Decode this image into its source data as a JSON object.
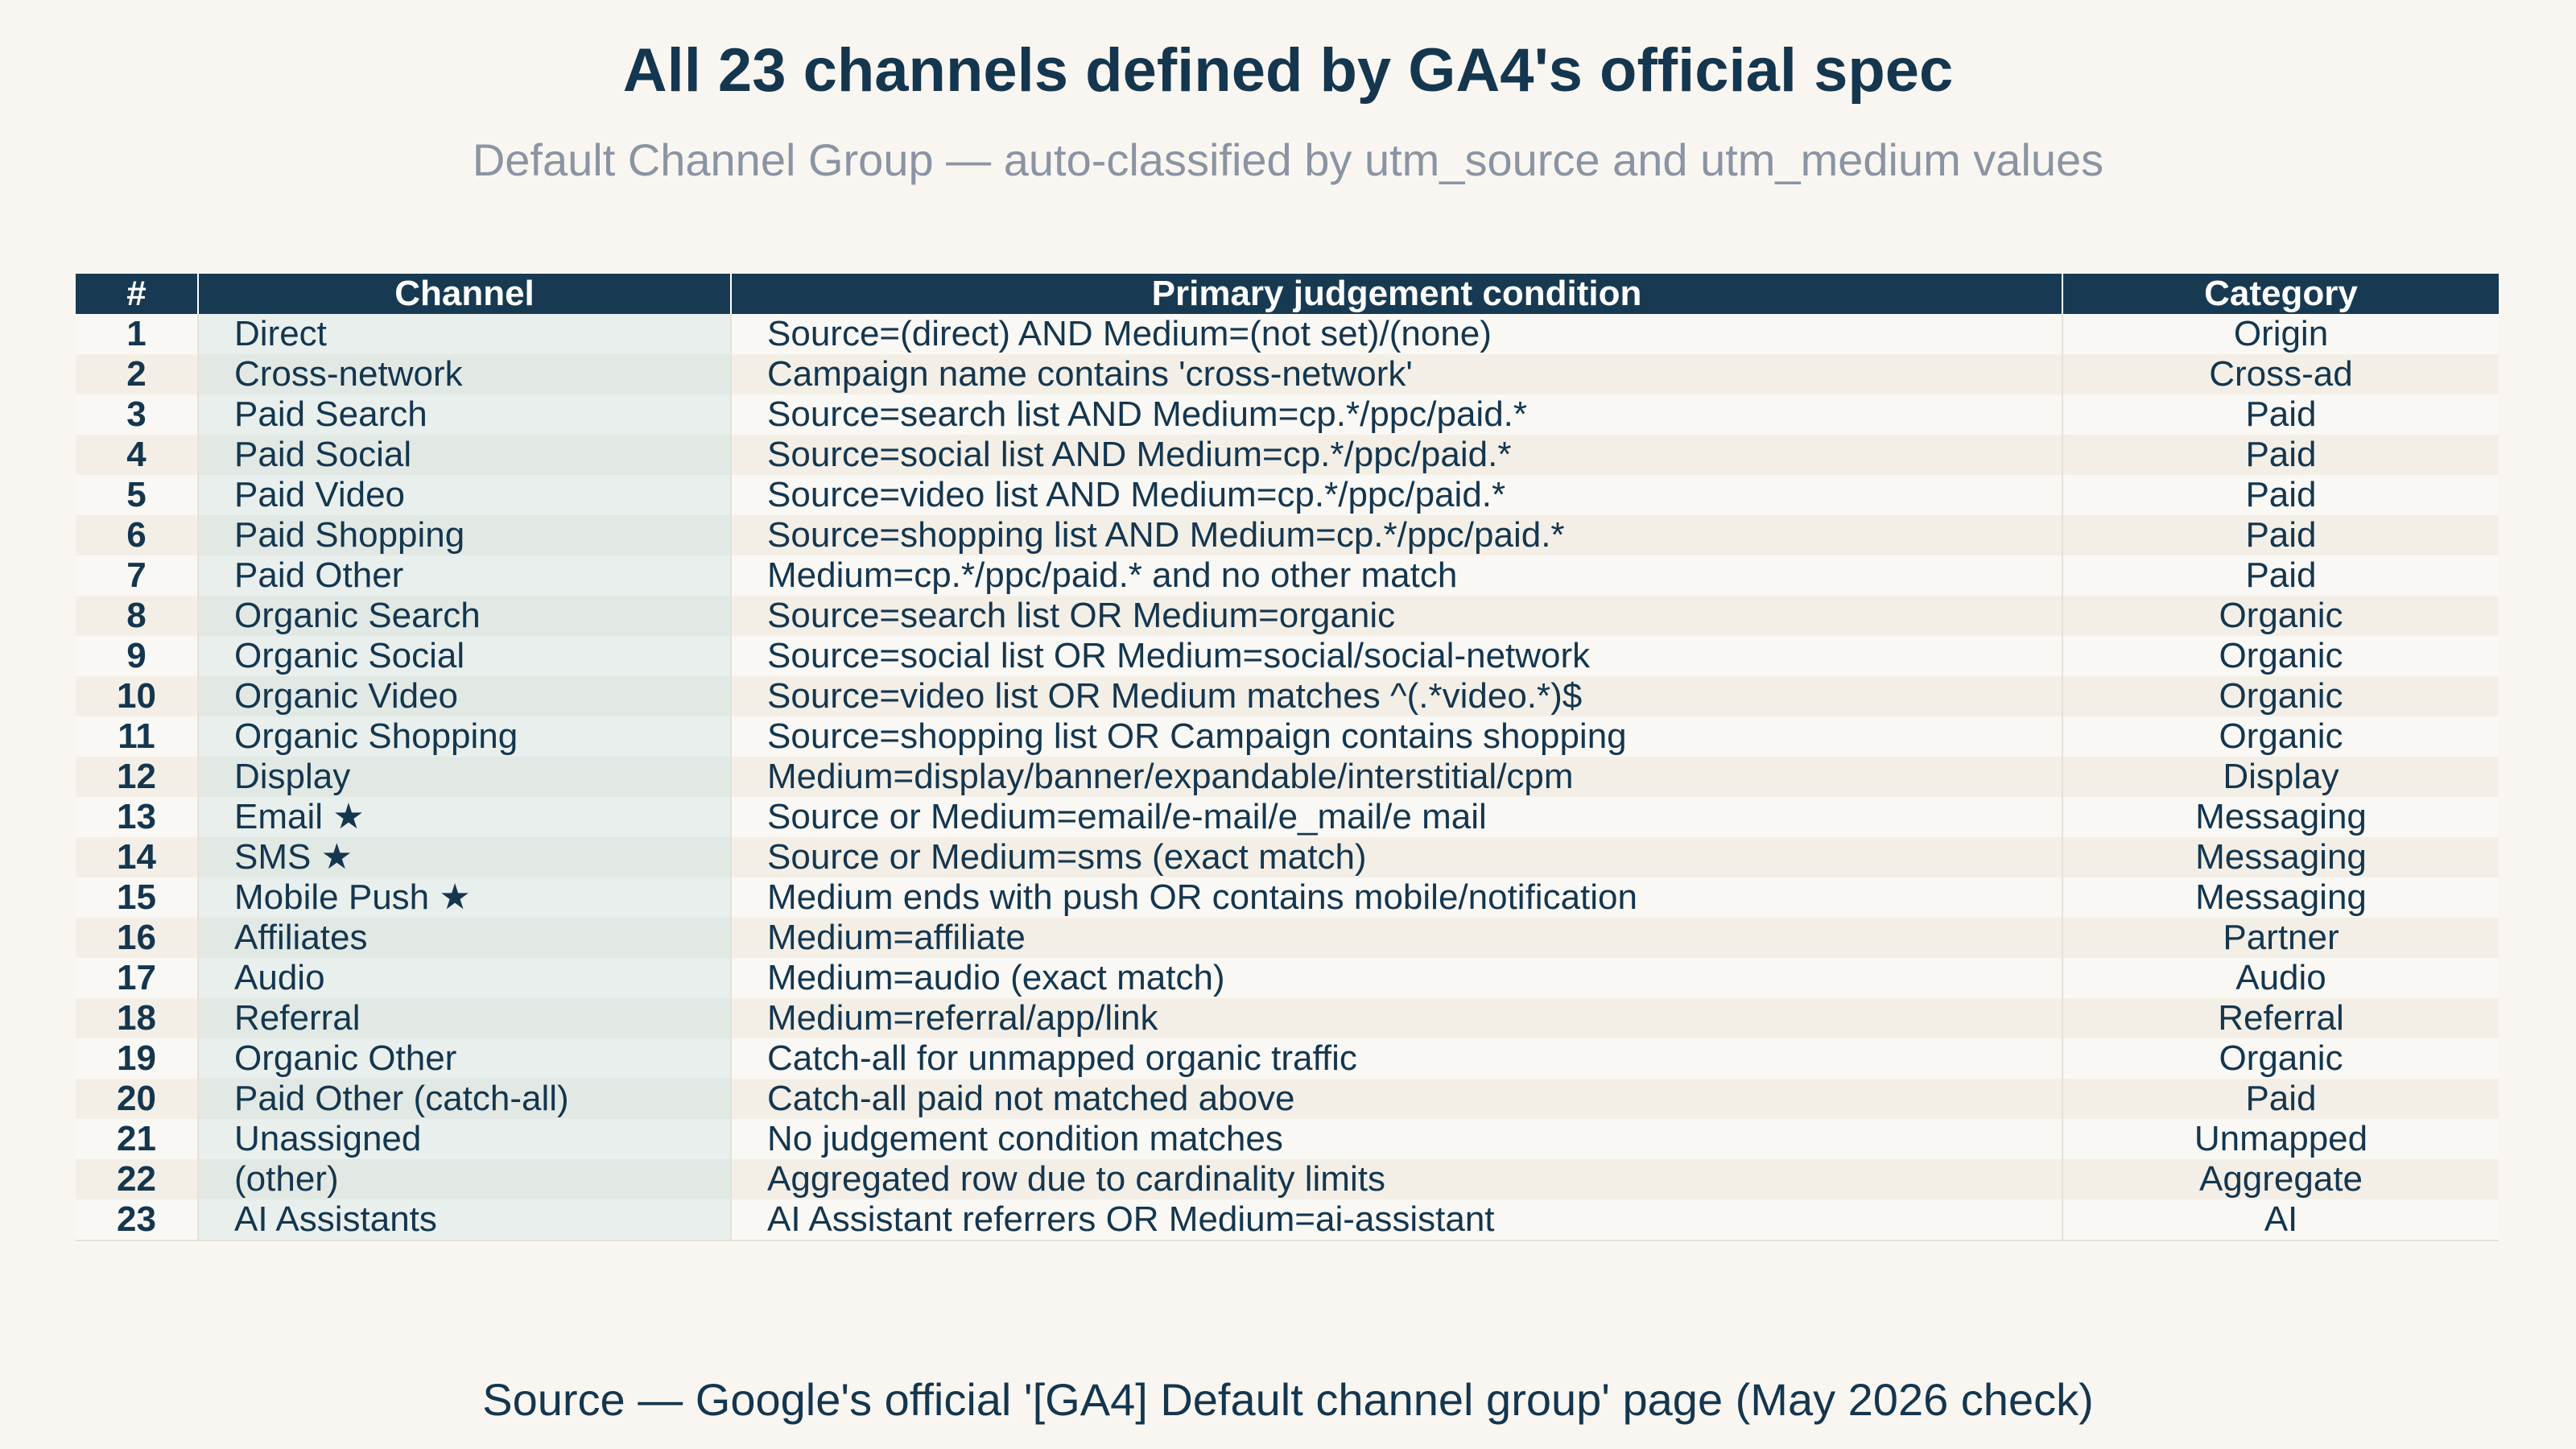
{
  "title": "All 23 channels defined by GA4's official spec",
  "subtitle": "Default Channel Group — auto-classified by utm_source and utm_medium values",
  "footer": "Source — Google's official '[GA4] Default channel group' page (May 2026 check)",
  "colors": {
    "header_bg": "#173a52",
    "text": "#14364f",
    "subtitle": "#8a94a3",
    "background": "#f9f6f1"
  },
  "chart_data": {
    "type": "table",
    "columns": [
      "#",
      "Channel",
      "Primary judgement condition",
      "Category"
    ],
    "rows": [
      [
        "1",
        "Direct",
        "Source=(direct) AND Medium=(not set)/(none)",
        "Origin"
      ],
      [
        "2",
        "Cross-network",
        "Campaign name contains 'cross-network'",
        "Cross-ad"
      ],
      [
        "3",
        "Paid Search",
        "Source=search list AND Medium=cp.*/ppc/paid.*",
        "Paid"
      ],
      [
        "4",
        "Paid Social",
        "Source=social list AND Medium=cp.*/ppc/paid.*",
        "Paid"
      ],
      [
        "5",
        "Paid Video",
        "Source=video list AND Medium=cp.*/ppc/paid.*",
        "Paid"
      ],
      [
        "6",
        "Paid Shopping",
        "Source=shopping list AND Medium=cp.*/ppc/paid.*",
        "Paid"
      ],
      [
        "7",
        "Paid Other",
        "Medium=cp.*/ppc/paid.* and no other match",
        "Paid"
      ],
      [
        "8",
        "Organic Search",
        "Source=search list OR Medium=organic",
        "Organic"
      ],
      [
        "9",
        "Organic Social",
        "Source=social list OR Medium=social/social-network",
        "Organic"
      ],
      [
        "10",
        "Organic Video",
        "Source=video list OR Medium matches ^(.*video.*)$",
        "Organic"
      ],
      [
        "11",
        "Organic Shopping",
        "Source=shopping list OR Campaign contains shopping",
        "Organic"
      ],
      [
        "12",
        "Display",
        "Medium=display/banner/expandable/interstitial/cpm",
        "Display"
      ],
      [
        "13",
        "Email ★",
        "Source or Medium=email/e-mail/e_mail/e mail",
        "Messaging"
      ],
      [
        "14",
        "SMS ★",
        "Source or Medium=sms (exact match)",
        "Messaging"
      ],
      [
        "15",
        "Mobile Push ★",
        "Medium ends with push OR contains mobile/notification",
        "Messaging"
      ],
      [
        "16",
        "Affiliates",
        "Medium=affiliate",
        "Partner"
      ],
      [
        "17",
        "Audio",
        "Medium=audio (exact match)",
        "Audio"
      ],
      [
        "18",
        "Referral",
        "Medium=referral/app/link",
        "Referral"
      ],
      [
        "19",
        "Organic Other",
        "Catch-all for unmapped organic traffic",
        "Organic"
      ],
      [
        "20",
        "Paid Other (catch-all)",
        "Catch-all paid not matched above",
        "Paid"
      ],
      [
        "21",
        "Unassigned",
        "No judgement condition matches",
        "Unmapped"
      ],
      [
        "22",
        "(other)",
        "Aggregated row due to cardinality limits",
        "Aggregate"
      ],
      [
        "23",
        "AI Assistants",
        "AI Assistant referrers OR Medium=ai-assistant",
        "AI"
      ]
    ]
  }
}
